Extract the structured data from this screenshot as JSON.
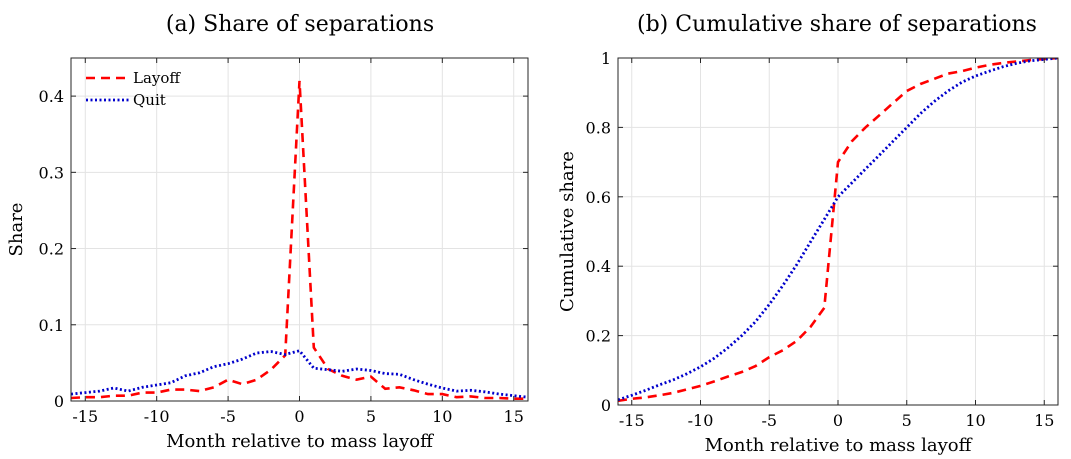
{
  "colors": {
    "layoff": "#ff0000",
    "quit": "#0000cc"
  },
  "chart_data": [
    {
      "type": "line",
      "title": "(a) Share of separations",
      "xlabel": "Month relative to mass layoff",
      "ylabel": "Share",
      "xlim": [
        -16,
        16
      ],
      "ylim": [
        0,
        0.45
      ],
      "xticks": [
        -15,
        -10,
        -5,
        0,
        5,
        10,
        15
      ],
      "xtick_labels": [
        "-15",
        "-10",
        "-5",
        "0",
        "5",
        "10",
        "15"
      ],
      "yticks": [
        0,
        0.1,
        0.2,
        0.3,
        0.4
      ],
      "ytick_labels": [
        "0",
        "0.1",
        "0.2",
        "0.3",
        "0.4"
      ],
      "grid": true,
      "legend": "top-left",
      "series": [
        {
          "name": "Layoff",
          "style": "dashed",
          "color": "#ff0000",
          "x": [
            -16,
            -15,
            -14,
            -13,
            -12,
            -11,
            -10,
            -9,
            -8,
            -7,
            -6,
            -5,
            -4,
            -3,
            -2,
            -1,
            0,
            1,
            2,
            3,
            4,
            5,
            6,
            7,
            8,
            9,
            10,
            11,
            12,
            13,
            14,
            15,
            16
          ],
          "y": [
            0.004,
            0.005,
            0.005,
            0.007,
            0.007,
            0.011,
            0.011,
            0.015,
            0.015,
            0.013,
            0.018,
            0.028,
            0.022,
            0.028,
            0.041,
            0.06,
            0.42,
            0.07,
            0.042,
            0.033,
            0.028,
            0.032,
            0.016,
            0.018,
            0.014,
            0.009,
            0.009,
            0.005,
            0.006,
            0.004,
            0.004,
            0.003,
            0.003
          ]
        },
        {
          "name": "Quit",
          "style": "dotted",
          "color": "#0000cc",
          "x": [
            -16,
            -15,
            -14,
            -13,
            -12,
            -11,
            -10,
            -9,
            -8,
            -7,
            -6,
            -5,
            -4,
            -3,
            -2,
            -1,
            0,
            1,
            2,
            3,
            4,
            5,
            6,
            7,
            8,
            9,
            10,
            11,
            12,
            13,
            14,
            15,
            16
          ],
          "y": [
            0.009,
            0.011,
            0.013,
            0.017,
            0.013,
            0.018,
            0.021,
            0.024,
            0.033,
            0.037,
            0.045,
            0.049,
            0.055,
            0.063,
            0.065,
            0.061,
            0.066,
            0.043,
            0.041,
            0.039,
            0.042,
            0.04,
            0.036,
            0.035,
            0.028,
            0.022,
            0.017,
            0.013,
            0.014,
            0.012,
            0.009,
            0.007,
            0.005
          ]
        }
      ]
    },
    {
      "type": "line",
      "title": "(b) Cumulative share of separations",
      "xlabel": "Month relative to mass layoff",
      "ylabel": "Cumulative share",
      "xlim": [
        -16,
        16
      ],
      "ylim": [
        0,
        1
      ],
      "xticks": [
        -15,
        -10,
        -5,
        0,
        5,
        10,
        15
      ],
      "xtick_labels": [
        "-15",
        "-10",
        "-5",
        "0",
        "5",
        "10",
        "15"
      ],
      "yticks": [
        0,
        0.2,
        0.4,
        0.6,
        0.8,
        1
      ],
      "ytick_labels": [
        "0",
        "0.2",
        "0.4",
        "0.6",
        "0.8",
        "1"
      ],
      "grid": true,
      "series": [
        {
          "name": "Layoff",
          "style": "dashed",
          "color": "#ff0000",
          "x": [
            -16,
            -15,
            -14,
            -13,
            -12,
            -11,
            -10,
            -9,
            -8,
            -7,
            -6,
            -5,
            -4,
            -3,
            -2,
            -1,
            0,
            1,
            2,
            3,
            4,
            5,
            6,
            7,
            8,
            9,
            10,
            11,
            12,
            13,
            14,
            15,
            16
          ],
          "y": [
            0.012,
            0.018,
            0.022,
            0.028,
            0.035,
            0.045,
            0.055,
            0.068,
            0.082,
            0.095,
            0.112,
            0.138,
            0.158,
            0.185,
            0.225,
            0.28,
            0.7,
            0.76,
            0.8,
            0.835,
            0.87,
            0.905,
            0.925,
            0.94,
            0.955,
            0.962,
            0.972,
            0.98,
            0.986,
            0.99,
            0.994,
            0.997,
            1.0
          ]
        },
        {
          "name": "Quit",
          "style": "dotted",
          "color": "#0000cc",
          "x": [
            -16,
            -15,
            -14,
            -13,
            -12,
            -11,
            -10,
            -9,
            -8,
            -7,
            -6,
            -5,
            -4,
            -3,
            -2,
            -1,
            0,
            1,
            2,
            3,
            4,
            5,
            6,
            7,
            8,
            9,
            10,
            11,
            12,
            13,
            14,
            15,
            16
          ],
          "y": [
            0.015,
            0.028,
            0.042,
            0.058,
            0.072,
            0.09,
            0.11,
            0.135,
            0.165,
            0.2,
            0.24,
            0.29,
            0.345,
            0.405,
            0.47,
            0.535,
            0.6,
            0.64,
            0.68,
            0.72,
            0.76,
            0.8,
            0.84,
            0.875,
            0.905,
            0.93,
            0.948,
            0.962,
            0.975,
            0.985,
            0.992,
            0.996,
            1.0
          ]
        }
      ]
    }
  ]
}
